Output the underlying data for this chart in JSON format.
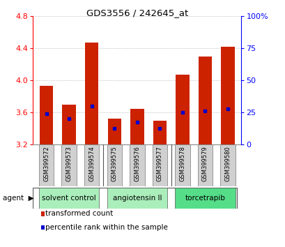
{
  "title": "GDS3556 / 242645_at",
  "samples": [
    "GSM399572",
    "GSM399573",
    "GSM399574",
    "GSM399575",
    "GSM399576",
    "GSM399577",
    "GSM399578",
    "GSM399579",
    "GSM399580"
  ],
  "bar_tops": [
    3.93,
    3.7,
    4.47,
    3.52,
    3.64,
    3.5,
    4.07,
    4.3,
    4.42
  ],
  "bar_bottom": 3.2,
  "blue_positions": [
    3.58,
    3.52,
    3.68,
    3.4,
    3.48,
    3.4,
    3.6,
    3.62,
    3.64
  ],
  "bar_color": "#cc2200",
  "blue_color": "#0000cc",
  "ylim": [
    3.2,
    4.8
  ],
  "ylim_right": [
    0,
    100
  ],
  "yticks_left": [
    3.2,
    3.6,
    4.0,
    4.4,
    4.8
  ],
  "yticks_right": [
    0,
    25,
    50,
    75,
    100
  ],
  "ytick_labels_right": [
    "0",
    "25",
    "50",
    "75",
    "100%"
  ],
  "groups": [
    {
      "label": "solvent control",
      "indices": [
        0,
        1,
        2
      ],
      "color": "#aaeebb"
    },
    {
      "label": "angiotensin II",
      "indices": [
        3,
        4,
        5
      ],
      "color": "#aaeebb"
    },
    {
      "label": "torcetrapib",
      "indices": [
        6,
        7,
        8
      ],
      "color": "#55dd88"
    }
  ],
  "legend_items": [
    {
      "label": "transformed count",
      "color": "#cc2200"
    },
    {
      "label": "percentile rank within the sample",
      "color": "#0000cc"
    }
  ],
  "grid_color": "#aaaaaa",
  "bar_width": 0.6
}
